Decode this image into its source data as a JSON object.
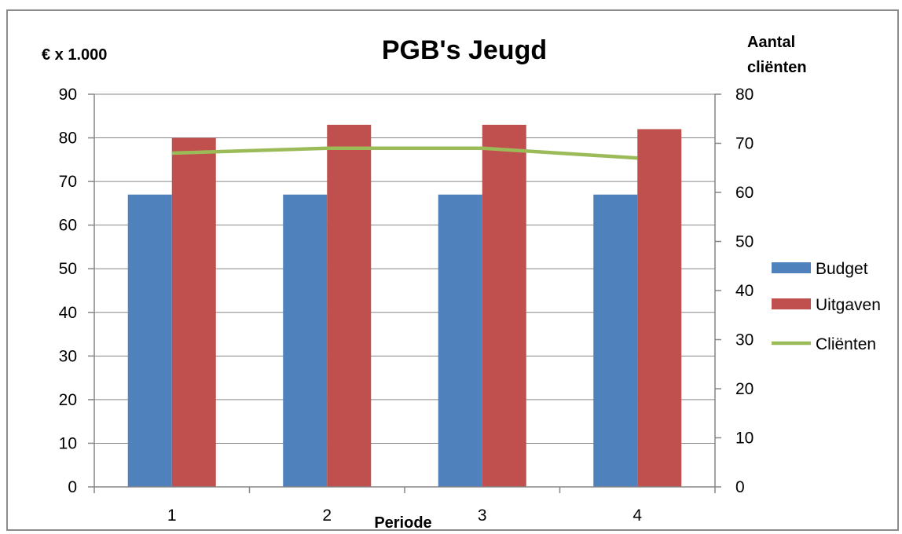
{
  "chart_data": {
    "type": "bar",
    "title": "PGB's Jeugd",
    "ylabel_left": "€ x 1.000",
    "ylabel_right_line1": "Aantal",
    "ylabel_right_line2": "cliënten",
    "xlabel": "Periode",
    "categories": [
      "1",
      "2",
      "3",
      "4"
    ],
    "series": [
      {
        "name": "Budget",
        "kind": "bar",
        "axis": "left",
        "color": "#4f81bd",
        "values": [
          67,
          67,
          67,
          67
        ]
      },
      {
        "name": "Uitgaven",
        "kind": "bar",
        "axis": "left",
        "color": "#c0504d",
        "values": [
          80,
          83,
          83,
          82
        ]
      },
      {
        "name": "Cliënten",
        "kind": "line",
        "axis": "right",
        "color": "#9bbb59",
        "values": [
          68,
          69,
          69,
          67
        ]
      }
    ],
    "ylim_left": [
      0,
      90
    ],
    "yticks_left": [
      "0",
      "10",
      "20",
      "30",
      "40",
      "50",
      "60",
      "70",
      "80",
      "90"
    ],
    "ylim_right": [
      0,
      80
    ],
    "yticks_right": [
      "0",
      "10",
      "20",
      "30",
      "40",
      "50",
      "60",
      "70",
      "80"
    ],
    "grid": "horizontal",
    "legend_position": "right"
  }
}
